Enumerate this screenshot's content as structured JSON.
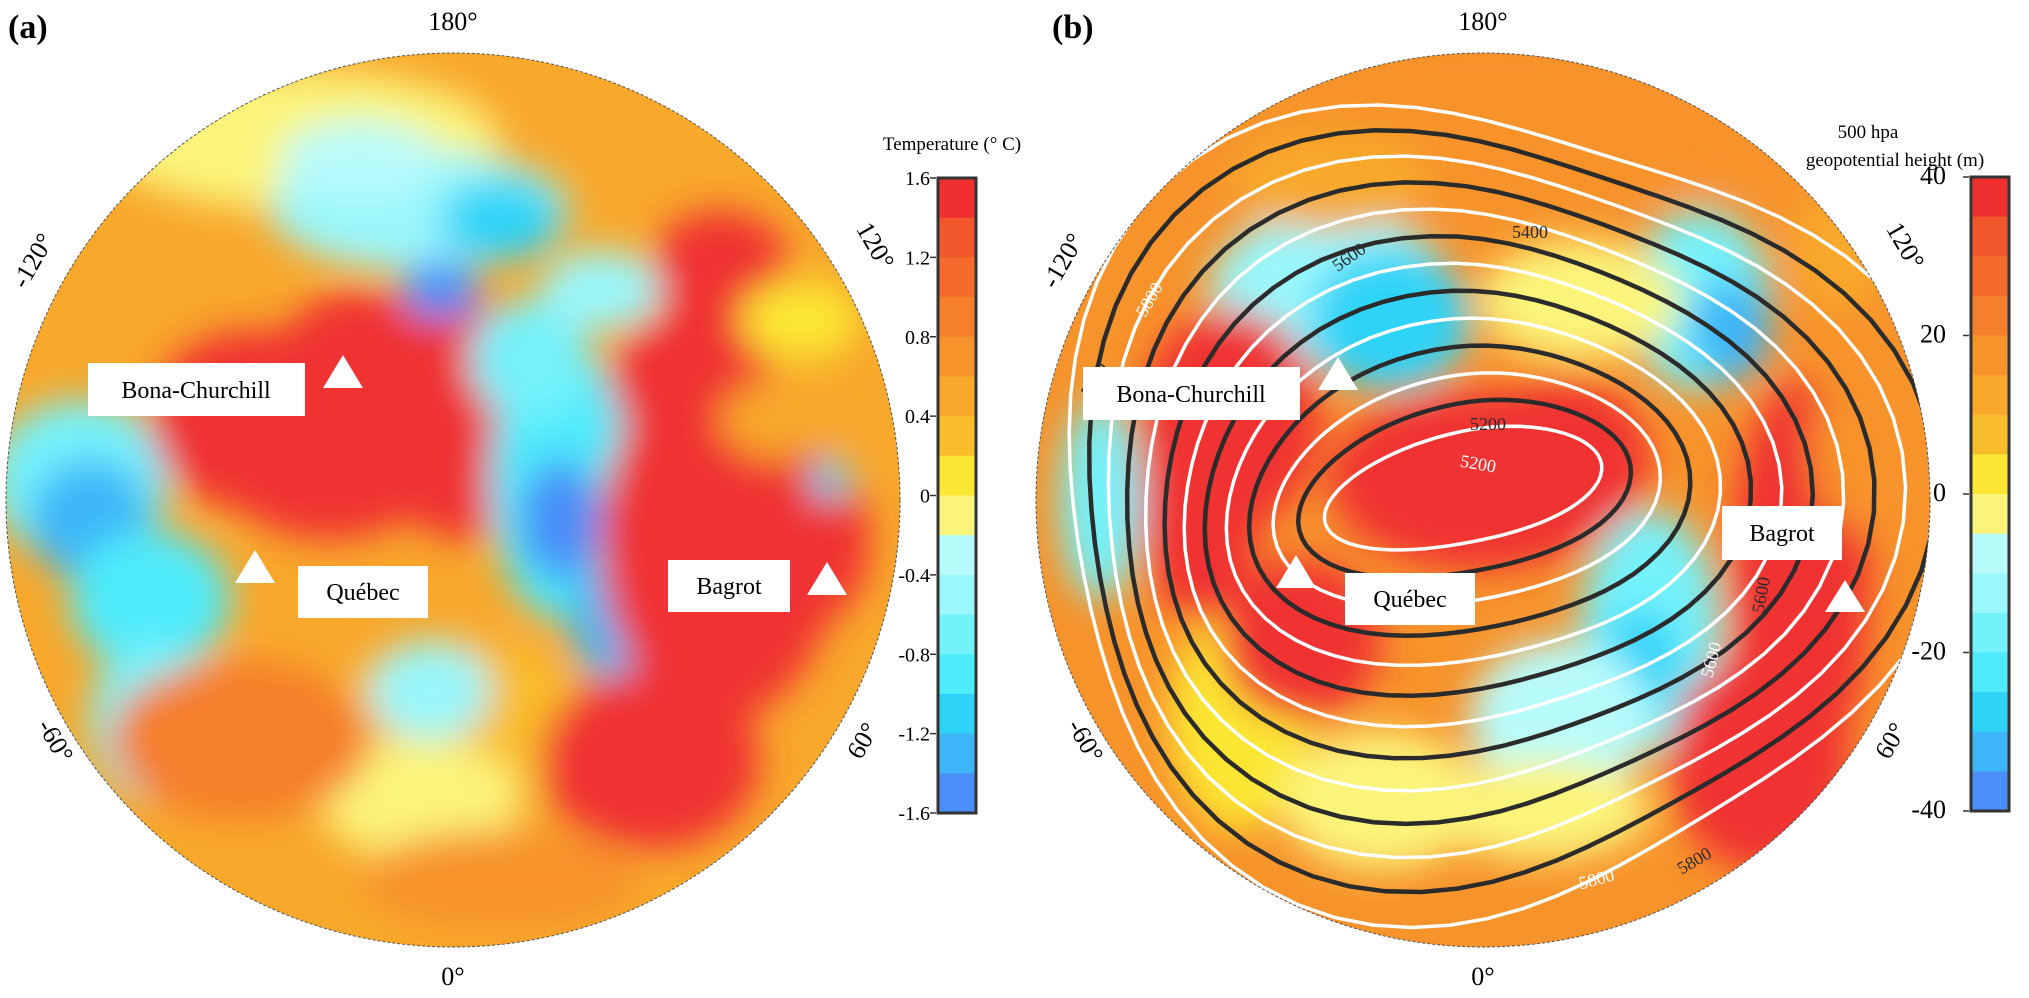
{
  "panels": [
    {
      "label": "(a)",
      "longitude_labels": {
        "top": "180°",
        "bottom": "0°",
        "upper_left": "-120°",
        "upper_right": "120°",
        "lower_left": "-60°",
        "lower_right": "60°"
      },
      "sites": [
        "Bona-Churchill",
        "Québec",
        "Bagrot"
      ],
      "colorbar": {
        "title": "Temperature (° C)",
        "ticks": [
          "1.6",
          "1.2",
          "0.8",
          "0.4",
          "0",
          "-0.4",
          "-0.8",
          "-1.2",
          "-1.6"
        ],
        "range": [
          -1.6,
          1.6
        ]
      }
    },
    {
      "label": "(b)",
      "longitude_labels": {
        "top": "180°",
        "bottom": "0°",
        "upper_left": "-120°",
        "upper_right": "120°",
        "lower_left": "-60°",
        "lower_right": "60°"
      },
      "sites": [
        "Bona-Churchill",
        "Québec",
        "Bagrot"
      ],
      "contour_labels": [
        "5200",
        "5200",
        "5400",
        "5600",
        "5800",
        "5800",
        "5600",
        "5600",
        "5800",
        "5800"
      ],
      "colorbar": {
        "title_line1": "500 hpa",
        "title_line2": "geopotential height (m)",
        "ticks": [
          "40",
          "20",
          "0",
          "-20",
          "-40"
        ],
        "range": [
          -40,
          40
        ]
      }
    }
  ],
  "colors": {
    "scale": [
      "#f03030",
      "#f2572b",
      "#f46b2b",
      "#f57f2b",
      "#f7932b",
      "#f8a82b",
      "#f9bd2c",
      "#fbe733",
      "#fbf47a",
      "#b8fbfb",
      "#9af7fb",
      "#74f2fb",
      "#4eebfb",
      "#2fd3f8",
      "#3cb6f8",
      "#4a8ef8"
    ],
    "contour_black": "#2b2b2b",
    "contour_white": "#ffffff"
  }
}
